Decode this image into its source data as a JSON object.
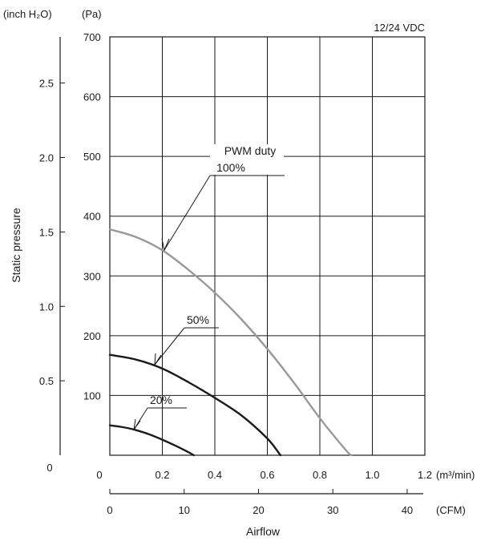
{
  "chart_data": {
    "type": "line",
    "note": "12/24 VDC",
    "ylabel": "Static pressure",
    "xlabel": "Airflow",
    "y_primary_unit": "(Pa)",
    "y_secondary_unit": "(inch H₂O)",
    "x_primary_unit": "(m³/min)",
    "x_secondary_unit": "(CFM)",
    "xlim": [
      0,
      1.2
    ],
    "ylim": [
      0,
      700
    ],
    "x_ticks": [
      0,
      0.2,
      0.4,
      0.6,
      0.8,
      1.0,
      1.2
    ],
    "x_tick_labels": [
      "0",
      "0.2",
      "0.4",
      "0.6",
      "0.8",
      "1.0",
      "1.2"
    ],
    "y_ticks": [
      100,
      200,
      300,
      400,
      500,
      600,
      700
    ],
    "y_tick_labels": [
      "100",
      "200",
      "300",
      "400",
      "500",
      "600",
      "700"
    ],
    "y_zero_label": "0",
    "y2_ticks": [
      0.5,
      1.0,
      1.5,
      2.0,
      2.5
    ],
    "y2_tick_labels": [
      "0.5",
      "1.0",
      "1.5",
      "2.0",
      "2.5"
    ],
    "y2_zero_label": "0",
    "cfm_ticks": [
      0,
      10,
      20,
      30,
      40
    ],
    "cfm_tick_labels": [
      "0",
      "10",
      "20",
      "30",
      "40"
    ],
    "grid": true,
    "series": [
      {
        "name": "100%",
        "color": "#999999",
        "x": [
          0,
          0.1,
          0.2,
          0.3,
          0.4,
          0.5,
          0.6,
          0.7,
          0.8,
          0.9,
          0.92
        ],
        "y": [
          378,
          365,
          343,
          310,
          272,
          228,
          178,
          122,
          62,
          8,
          0
        ]
      },
      {
        "name": "50%",
        "color": "#1a1a1a",
        "x": [
          0,
          0.1,
          0.2,
          0.3,
          0.4,
          0.5,
          0.6,
          0.65
        ],
        "y": [
          168,
          160,
          145,
          122,
          96,
          67,
          28,
          0
        ]
      },
      {
        "name": "20%",
        "color": "#1a1a1a",
        "x": [
          0,
          0.05,
          0.1,
          0.15,
          0.2,
          0.25,
          0.3,
          0.32
        ],
        "y": [
          50,
          47,
          42,
          35,
          26,
          16,
          5,
          0
        ]
      }
    ],
    "annotations": [
      {
        "text": "PWM duty",
        "target_series": "100%",
        "target_x": 0.2,
        "target_y": 343
      },
      {
        "text": "100%",
        "target_series": "100%",
        "target_x": 0.2,
        "target_y": 343
      },
      {
        "text": "50%",
        "target_series": "50%",
        "target_x": 0.17,
        "target_y": 150
      },
      {
        "text": "20%",
        "target_series": "20%",
        "target_x": 0.09,
        "target_y": 43
      }
    ]
  }
}
